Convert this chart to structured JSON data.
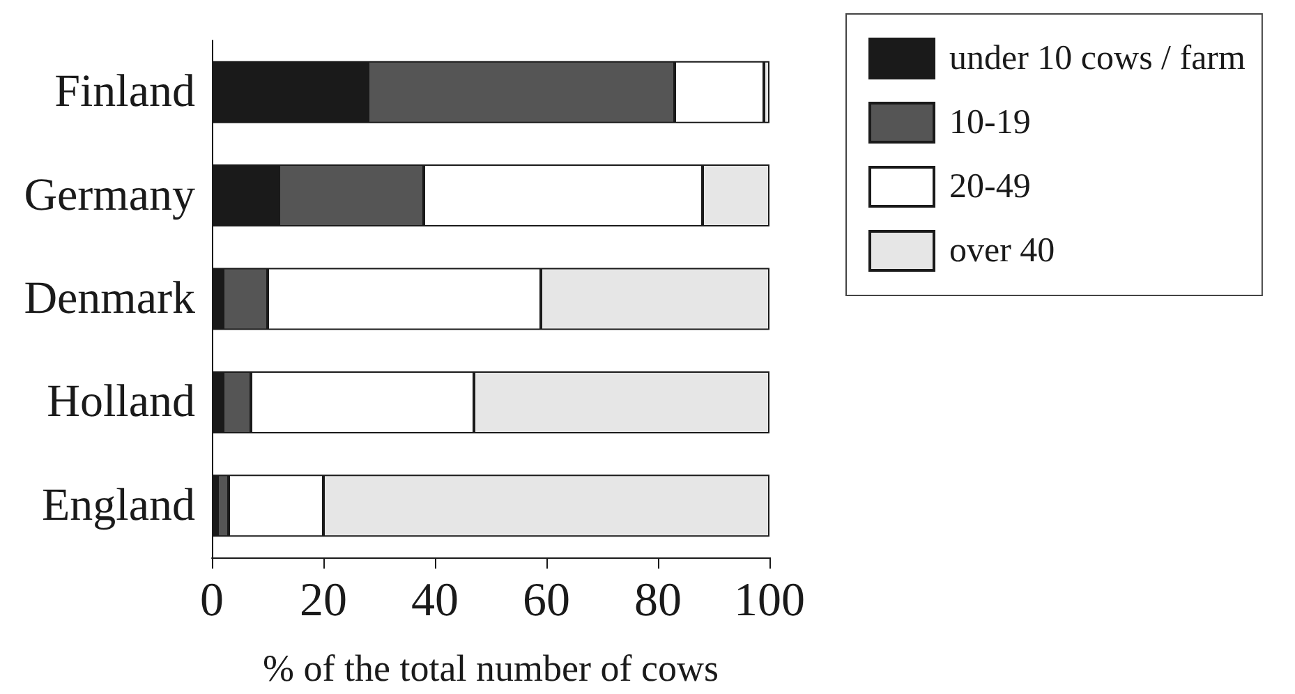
{
  "chart_data": {
    "type": "bar",
    "orientation": "horizontal",
    "stacked": true,
    "categories": [
      "Finland",
      "Germany",
      "Denmark",
      "Holland",
      "England"
    ],
    "series": [
      {
        "name": "under 10 cows / farm",
        "color": "#1a1a1a",
        "values": [
          28,
          12,
          2,
          2,
          1
        ]
      },
      {
        "name": "10-19",
        "color": "#555555",
        "values": [
          55,
          26,
          8,
          5,
          2
        ]
      },
      {
        "name": "20-49",
        "color": "#ffffff",
        "values": [
          16,
          50,
          49,
          40,
          17
        ]
      },
      {
        "name": "over 40",
        "color": "#e6e6e6",
        "values": [
          1,
          12,
          41,
          53,
          80
        ]
      }
    ],
    "xlim": [
      0,
      100
    ],
    "xticks": [
      0,
      20,
      40,
      60,
      80,
      100
    ],
    "xlabel": "% of the total number of cows",
    "legend": "top right",
    "grid": false
  }
}
